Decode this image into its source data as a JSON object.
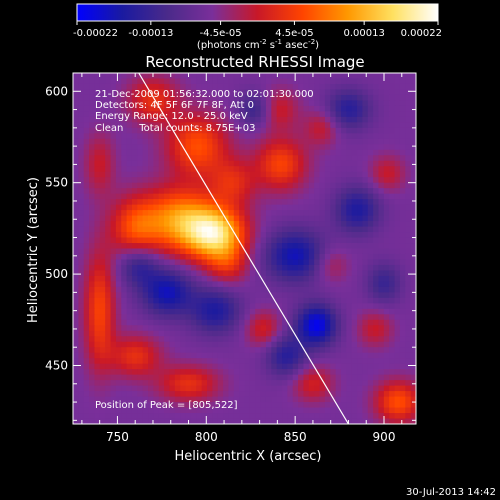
{
  "chart_data": {
    "type": "heatmap",
    "title": "Reconstructed RHESSI Image",
    "xlabel": "Heliocentric X (arcsec)",
    "ylabel": "Heliocentric Y (arcsec)",
    "x_range": [
      725,
      918
    ],
    "y_range": [
      418,
      610
    ],
    "x_ticks": [
      750,
      800,
      850,
      900
    ],
    "y_ticks": [
      450,
      500,
      550,
      600
    ],
    "colorbar": {
      "range": [
        -0.00022,
        0.00022
      ],
      "tick_values": [
        -0.00022,
        -0.00013,
        -4.5e-05,
        4.5e-05,
        0.00013,
        0.00022
      ],
      "tick_labels": [
        "-0.00022",
        "-0.00013",
        "-4.5e-05",
        "4.5e-05",
        "0.00013",
        "0.00022"
      ],
      "unit_label": "(photons cm",
      "unit_sup1": "-2",
      "unit_mid": " s",
      "unit_sup2": "-1",
      "unit_mid2": " asec",
      "unit_sup3": "-2",
      "unit_end": ")",
      "colors": [
        "#0000ff",
        "#1a1aa0",
        "#4a2a8a",
        "#7a2f9a",
        "#c81828",
        "#ff4400",
        "#ff9800",
        "#ffe060",
        "#ffffff"
      ]
    },
    "info_lines": [
      "21-Dec-2009 01:56:32.000 to 02:01:30.000",
      "Detectors: 4F 5F 6F 7F 8F, Att 0",
      "Energy Range: 12.0 - 25.0 keV",
      "Clean     Total counts: 8.75E+03"
    ],
    "peak_label": "Position of Peak = [805,522]",
    "peak": [
      805,
      522
    ],
    "limb_line": [
      [
        762,
        610
      ],
      [
        880,
        418
      ]
    ],
    "sources": [
      {
        "x": 805,
        "y": 522,
        "amp": 0.00022,
        "sx": 12,
        "sy": 10
      },
      {
        "x": 785,
        "y": 530,
        "amp": 0.00016,
        "sx": 14,
        "sy": 12
      },
      {
        "x": 760,
        "y": 525,
        "amp": 0.00011,
        "sx": 10,
        "sy": 12
      },
      {
        "x": 795,
        "y": 570,
        "amp": 0.00012,
        "sx": 12,
        "sy": 12
      },
      {
        "x": 770,
        "y": 595,
        "amp": 9e-05,
        "sx": 10,
        "sy": 9
      },
      {
        "x": 815,
        "y": 550,
        "amp": 8e-05,
        "sx": 9,
        "sy": 9
      },
      {
        "x": 740,
        "y": 480,
        "amp": 0.00011,
        "sx": 6,
        "sy": 22
      },
      {
        "x": 740,
        "y": 560,
        "amp": 6e-05,
        "sx": 6,
        "sy": 12
      },
      {
        "x": 842,
        "y": 560,
        "amp": 0.00011,
        "sx": 10,
        "sy": 10
      },
      {
        "x": 840,
        "y": 590,
        "amp": 7e-05,
        "sx": 8,
        "sy": 8
      },
      {
        "x": 865,
        "y": 580,
        "amp": 6e-05,
        "sx": 7,
        "sy": 7
      },
      {
        "x": 902,
        "y": 555,
        "amp": 6e-05,
        "sx": 7,
        "sy": 7
      },
      {
        "x": 760,
        "y": 455,
        "amp": 9e-05,
        "sx": 10,
        "sy": 8
      },
      {
        "x": 790,
        "y": 440,
        "amp": 9e-05,
        "sx": 12,
        "sy": 7
      },
      {
        "x": 812,
        "y": 505,
        "amp": 7e-05,
        "sx": 8,
        "sy": 8
      },
      {
        "x": 832,
        "y": 470,
        "amp": 7e-05,
        "sx": 7,
        "sy": 7
      },
      {
        "x": 860,
        "y": 440,
        "amp": 7e-05,
        "sx": 8,
        "sy": 7
      },
      {
        "x": 908,
        "y": 430,
        "amp": 0.00012,
        "sx": 9,
        "sy": 8
      },
      {
        "x": 895,
        "y": 470,
        "amp": 6e-05,
        "sx": 7,
        "sy": 7
      },
      {
        "x": 870,
        "y": 505,
        "amp": 5e-05,
        "sx": 7,
        "sy": 7
      },
      {
        "x": 778,
        "y": 490,
        "amp": -0.00012,
        "sx": 10,
        "sy": 9
      },
      {
        "x": 762,
        "y": 505,
        "amp": -9e-05,
        "sx": 8,
        "sy": 8
      },
      {
        "x": 805,
        "y": 480,
        "amp": -0.0001,
        "sx": 10,
        "sy": 9
      },
      {
        "x": 850,
        "y": 510,
        "amp": -0.00012,
        "sx": 12,
        "sy": 10
      },
      {
        "x": 862,
        "y": 472,
        "amp": -0.00015,
        "sx": 8,
        "sy": 8
      },
      {
        "x": 885,
        "y": 535,
        "amp": -0.0001,
        "sx": 9,
        "sy": 9
      },
      {
        "x": 880,
        "y": 590,
        "amp": -9e-05,
        "sx": 9,
        "sy": 8
      },
      {
        "x": 845,
        "y": 455,
        "amp": -9e-05,
        "sx": 8,
        "sy": 8
      },
      {
        "x": 828,
        "y": 590,
        "amp": -8e-05,
        "sx": 7,
        "sy": 7
      },
      {
        "x": 900,
        "y": 495,
        "amp": -7e-05,
        "sx": 7,
        "sy": 8
      }
    ]
  },
  "footer": {
    "timestamp": "30-Jul-2013 14:42"
  }
}
